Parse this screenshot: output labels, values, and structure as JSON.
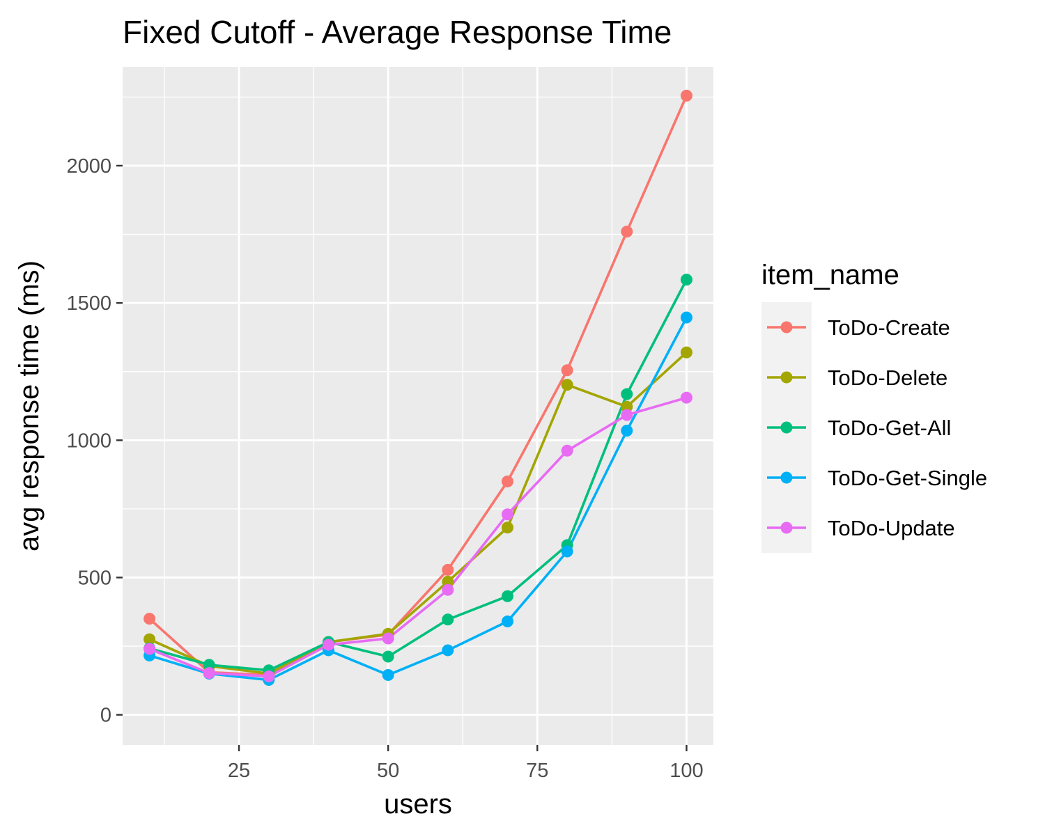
{
  "chart_data": {
    "type": "line",
    "title": "Fixed Cutoff - Average Response Time",
    "xlabel": "users",
    "ylabel": "avg response time (ms)",
    "xlim": [
      5.5,
      104.5
    ],
    "ylim": [
      -110,
      2360
    ],
    "x_ticks": [
      25,
      50,
      75,
      100
    ],
    "y_ticks": [
      0,
      500,
      1000,
      1500,
      2000
    ],
    "grid": true,
    "legend": {
      "title": "item_name",
      "position": "right"
    },
    "x": [
      10,
      20,
      30,
      40,
      50,
      60,
      70,
      80,
      90,
      100
    ],
    "series": [
      {
        "name": "ToDo-Create",
        "color": "#F8766D",
        "values": [
          350,
          155,
          145,
          265,
          292,
          528,
          850,
          1255,
          1760,
          2255
        ]
      },
      {
        "name": "ToDo-Delete",
        "color": "#A3A500",
        "values": [
          275,
          178,
          150,
          265,
          295,
          485,
          682,
          1202,
          1122,
          1320
        ]
      },
      {
        "name": "ToDo-Get-All",
        "color": "#00BF7D",
        "values": [
          242,
          182,
          162,
          265,
          212,
          347,
          432,
          618,
          1168,
          1585
        ]
      },
      {
        "name": "ToDo-Get-Single",
        "color": "#00B0F6",
        "values": [
          216,
          150,
          127,
          235,
          145,
          235,
          340,
          595,
          1035,
          1447
        ]
      },
      {
        "name": "ToDo-Update",
        "color": "#E76BF3",
        "values": [
          240,
          152,
          140,
          255,
          278,
          455,
          730,
          962,
          1092,
          1155
        ]
      }
    ]
  }
}
